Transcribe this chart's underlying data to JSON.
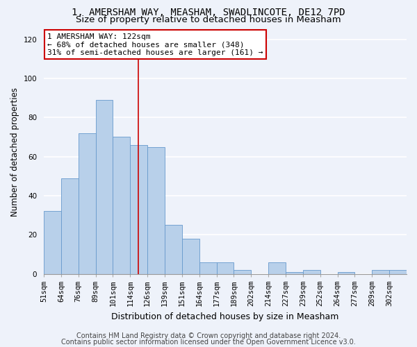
{
  "title1": "1, AMERSHAM WAY, MEASHAM, SWADLINCOTE, DE12 7PD",
  "title2": "Size of property relative to detached houses in Measham",
  "xlabel": "Distribution of detached houses by size in Measham",
  "ylabel": "Number of detached properties",
  "bar_values": [
    32,
    49,
    72,
    89,
    70,
    66,
    65,
    25,
    18,
    6,
    6,
    2,
    0,
    6,
    1,
    2,
    0,
    1,
    0,
    2,
    2
  ],
  "bin_labels": [
    "51sqm",
    "64sqm",
    "76sqm",
    "89sqm",
    "101sqm",
    "114sqm",
    "126sqm",
    "139sqm",
    "151sqm",
    "164sqm",
    "177sqm",
    "189sqm",
    "202sqm",
    "214sqm",
    "227sqm",
    "239sqm",
    "252sqm",
    "264sqm",
    "277sqm",
    "289sqm",
    "302sqm"
  ],
  "bar_color": "#b8d0ea",
  "bar_edge_color": "#6699cc",
  "property_line_x": 5.46,
  "annotation_line1": "1 AMERSHAM WAY: 122sqm",
  "annotation_line2": "← 68% of detached houses are smaller (348)",
  "annotation_line3": "31% of semi-detached houses are larger (161) →",
  "annotation_box_color": "#ffffff",
  "annotation_edge_color": "#cc0000",
  "vline_color": "#cc0000",
  "footer1": "Contains HM Land Registry data © Crown copyright and database right 2024.",
  "footer2": "Contains public sector information licensed under the Open Government Licence v3.0.",
  "ylim": [
    0,
    125
  ],
  "yticks": [
    0,
    20,
    40,
    60,
    80,
    100,
    120
  ],
  "background_color": "#eef2fa",
  "grid_color": "#ffffff",
  "title1_fontsize": 10,
  "title2_fontsize": 9.5,
  "ylabel_fontsize": 8.5,
  "xlabel_fontsize": 9,
  "tick_fontsize": 7.5,
  "annotation_fontsize": 8,
  "footer_fontsize": 7
}
